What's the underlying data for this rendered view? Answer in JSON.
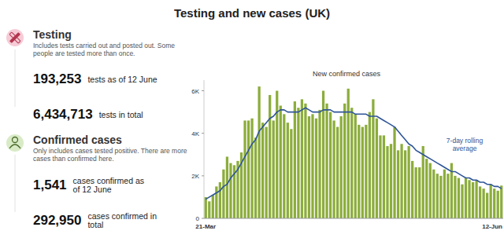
{
  "header": {
    "title": "Testing and new cases (UK)"
  },
  "panels": [
    {
      "heading": "Testing",
      "note": "Includes tests carried out and posted out. Some people are tested more than once.",
      "stats": [
        {
          "value": "193,253",
          "label": "tests as of 12 June"
        },
        {
          "value": "6,434,713",
          "label": "tests in total"
        }
      ]
    },
    {
      "heading": "Confirmed cases",
      "note": "Only includes cases tested positive. There are more cases than confirmed here.",
      "stats": [
        {
          "value": "1,541",
          "label": "cases confirmed as of 12 June"
        },
        {
          "value": "292,950",
          "label": "cases confirmed in total"
        }
      ]
    }
  ],
  "chart_data": {
    "type": "bar",
    "title": "New confirmed cases",
    "categories": [
      "21-Mar",
      null,
      null,
      null,
      null,
      null,
      null,
      null,
      null,
      null,
      null,
      null,
      null,
      null,
      null,
      null,
      null,
      null,
      null,
      null,
      null,
      null,
      null,
      null,
      null,
      null,
      null,
      null,
      null,
      null,
      null,
      null,
      null,
      null,
      null,
      null,
      null,
      null,
      null,
      null,
      null,
      null,
      null,
      null,
      null,
      null,
      null,
      null,
      null,
      null,
      null,
      null,
      null,
      null,
      null,
      null,
      null,
      null,
      null,
      null,
      null,
      null,
      null,
      null,
      null,
      null,
      null,
      null,
      null,
      null,
      null,
      null,
      null,
      null,
      null,
      null,
      null,
      null,
      null,
      null,
      null,
      null,
      null,
      "12-Jun"
    ],
    "series": [
      {
        "type": "bar",
        "color": "#8cad3c",
        "values": [
          1000,
          800,
          1100,
          1500,
          1700,
          2300,
          2900,
          2600,
          2500,
          2700,
          3100,
          4600,
          4600,
          4700,
          3800,
          6200,
          4500,
          4300,
          5800,
          4600,
          6000,
          5300,
          4900,
          4500,
          4200,
          5500,
          5200,
          5600,
          5400,
          4800,
          4900,
          4700,
          5100,
          6000,
          5400,
          5000,
          4600,
          4300,
          4800,
          5400,
          6100,
          5200,
          4900,
          4400,
          4300,
          4400,
          5000,
          5600,
          4700,
          3900,
          3900,
          3400,
          3500,
          4300,
          3200,
          3500,
          3200,
          3400,
          2700,
          2400,
          2400,
          3400,
          2800,
          2600,
          2300,
          2100,
          2000,
          2300,
          2100,
          2600,
          2000,
          1900,
          1600,
          1900,
          1800,
          1700,
          1800,
          1500,
          1400,
          1200,
          1600,
          1400,
          1300,
          1541
        ]
      },
      {
        "type": "line",
        "name": "7-day rolling average",
        "color": "#2f5597",
        "values": [
          900,
          1000,
          1100,
          1200,
          1300,
          1500,
          1600,
          1900,
          2100,
          2300,
          2600,
          2900,
          3200,
          3500,
          3700,
          4100,
          4300,
          4500,
          4700,
          4800,
          5000,
          5100,
          5100,
          5000,
          5000,
          5000,
          5000,
          5100,
          5200,
          5100,
          5000,
          5000,
          5000,
          5100,
          5100,
          5100,
          5000,
          5000,
          5000,
          5000,
          5000,
          5000,
          4900,
          4900,
          4900,
          4900,
          4800,
          4800,
          4800,
          4700,
          4600,
          4500,
          4400,
          4300,
          4100,
          3900,
          3700,
          3500,
          3400,
          3200,
          3100,
          3000,
          2900,
          2800,
          2700,
          2600,
          2500,
          2400,
          2300,
          2200,
          2200,
          2100,
          2000,
          1900,
          1900,
          1800,
          1800,
          1700,
          1700,
          1600,
          1600,
          1500,
          1500,
          1400
        ]
      }
    ],
    "ylim": [
      0,
      6500
    ],
    "yticks": [
      0,
      {
        "value": 2000,
        "label": "2K"
      },
      {
        "value": 4000,
        "label": "4K"
      },
      {
        "value": 6000,
        "label": "6K"
      }
    ],
    "grid": false
  }
}
